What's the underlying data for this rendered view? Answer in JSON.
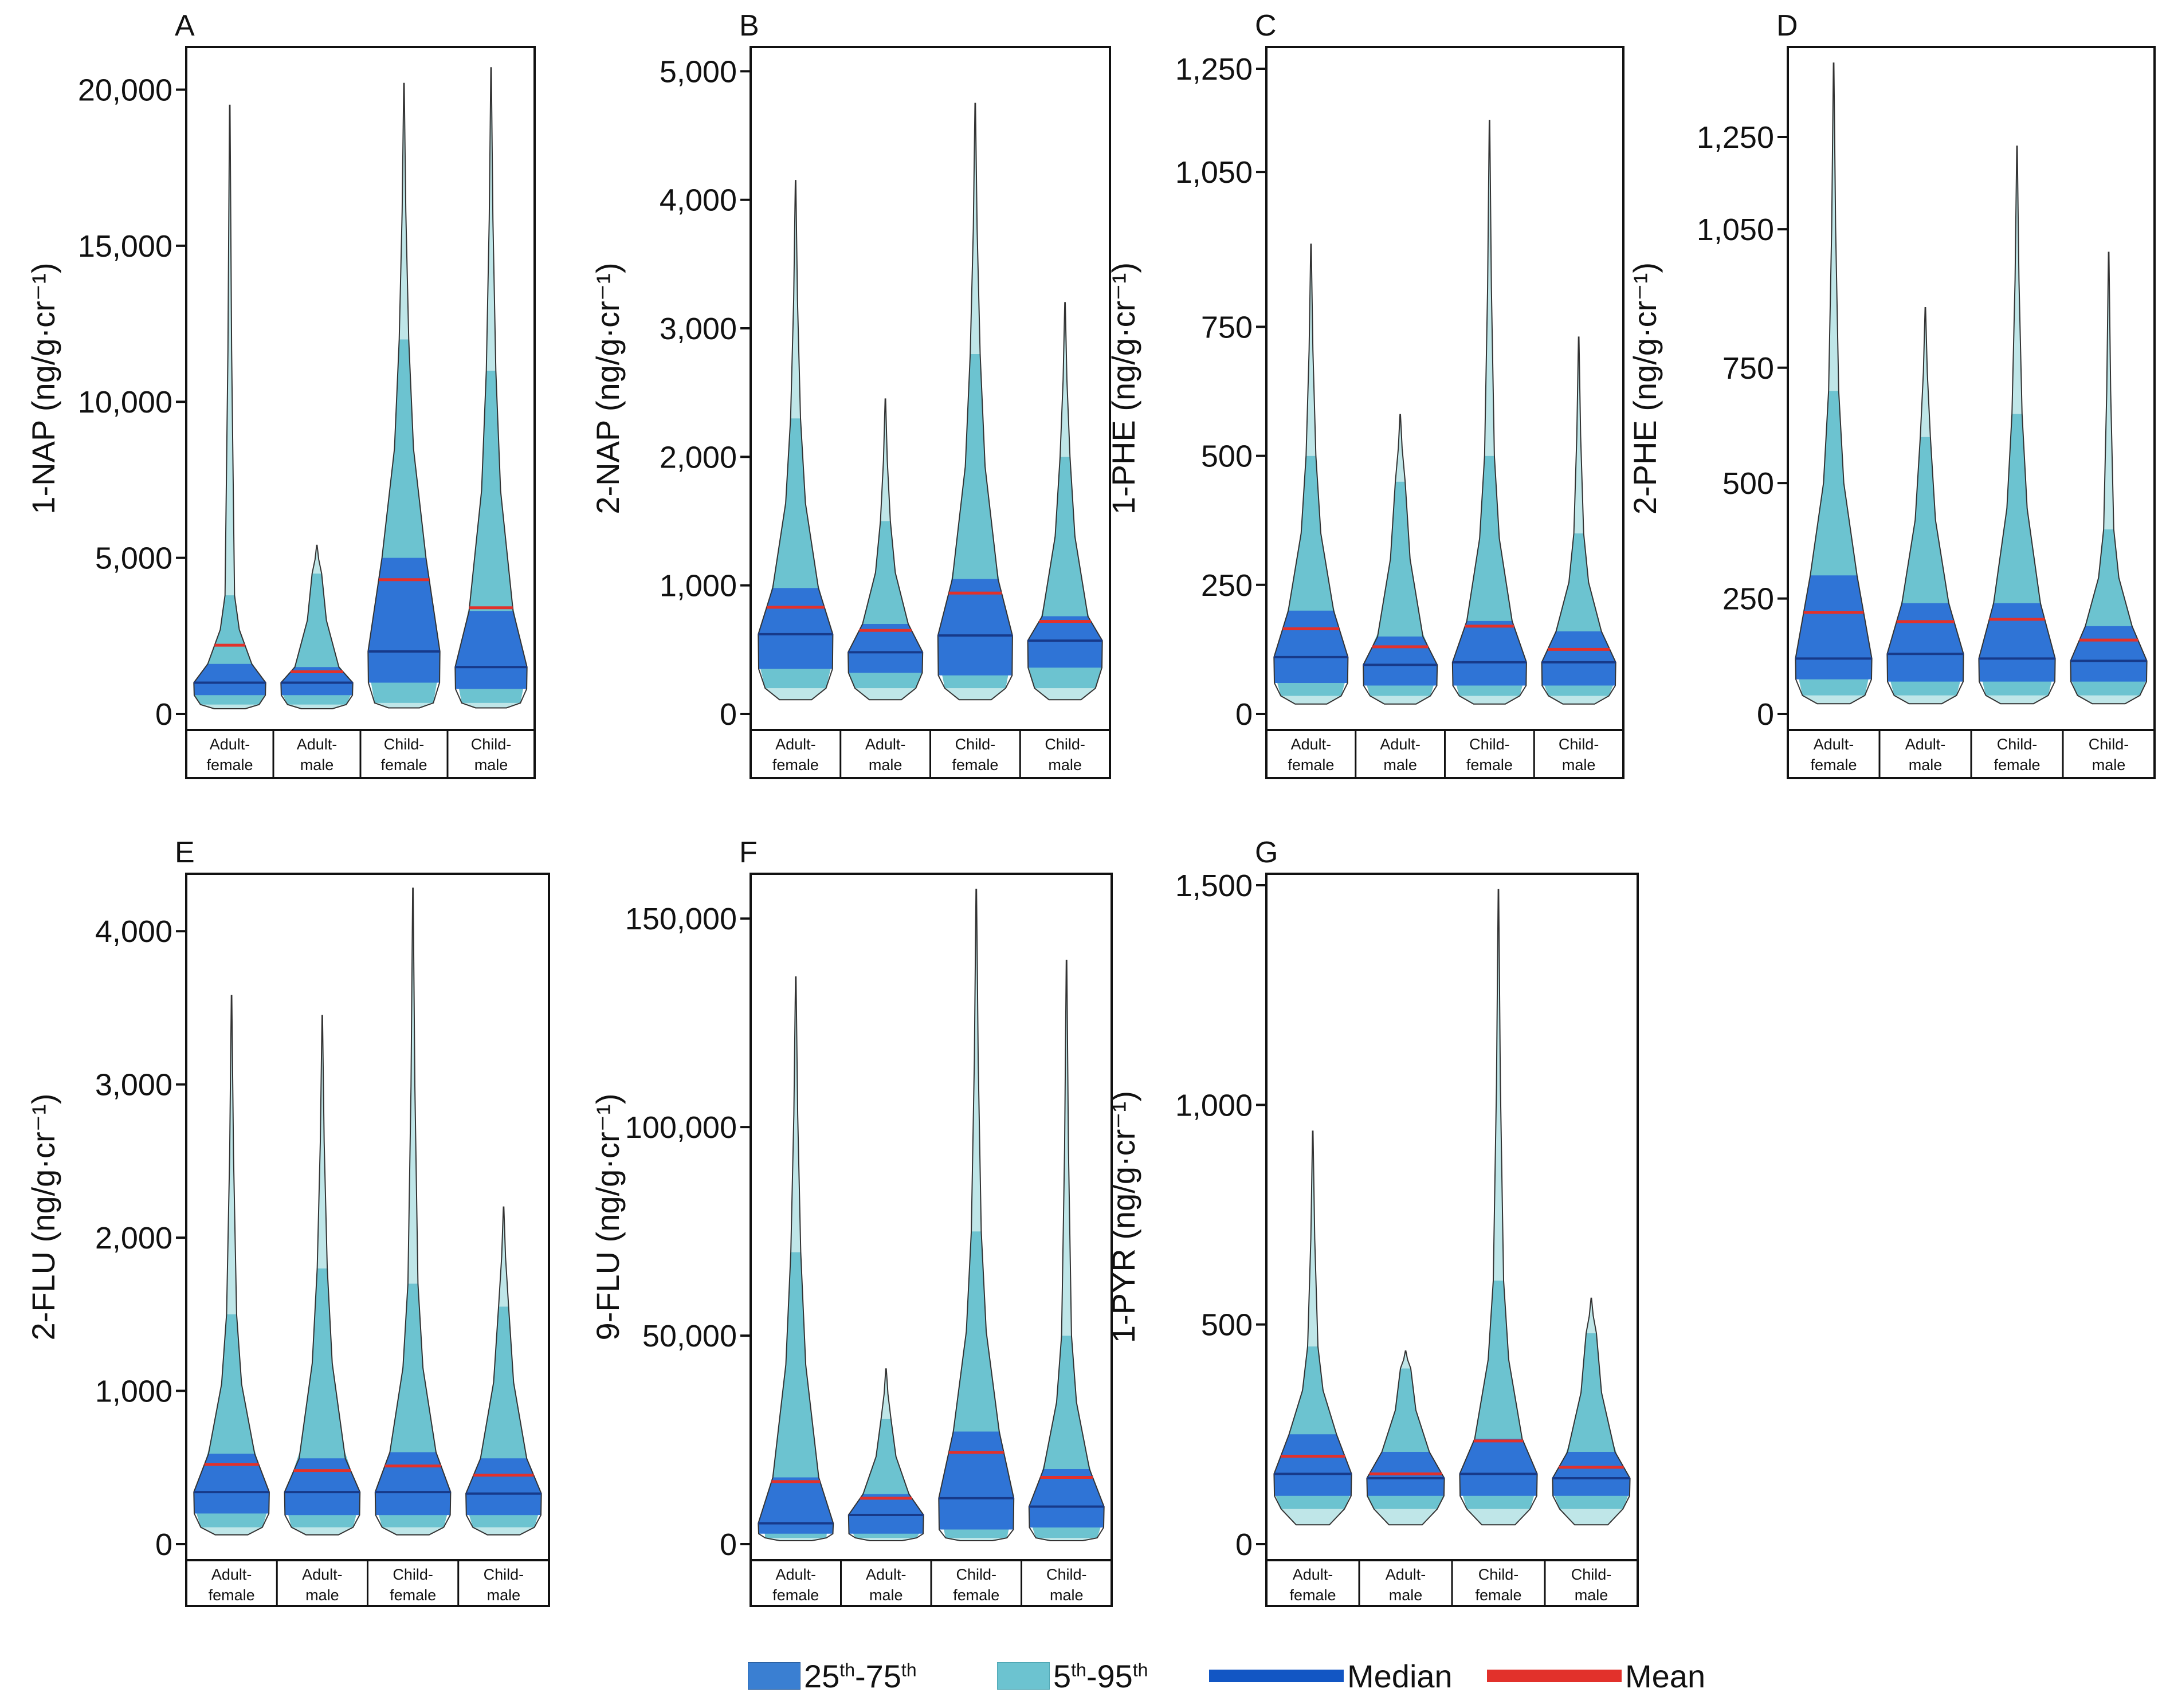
{
  "colors": {
    "iqr": "#2f74d6",
    "range": "#6cc3d0",
    "tail": "#bfe6e8",
    "median": "#173a8a",
    "mean": "#e2312b",
    "frame": "#111111"
  },
  "legend": {
    "iqr_label": "25th-75th",
    "range_label": "5th-95th",
    "median_label": "Median",
    "mean_label": "Mean"
  },
  "chart_data": [
    {
      "panel": "A",
      "type": "violin",
      "ylabel": "1-NAP (ng/g·cr⁻¹)",
      "ylim": [
        0,
        21000
      ],
      "yticks": [
        0,
        5000,
        10000,
        15000,
        20000
      ],
      "ytick_labels": [
        "0",
        "5,000",
        "10,000",
        "15,000",
        "20,000"
      ],
      "categories": [
        [
          "Adult-",
          "female"
        ],
        [
          "Adult-",
          "male"
        ],
        [
          "Child-",
          "female"
        ],
        [
          "Child-",
          "male"
        ]
      ],
      "groups": [
        {
          "p5": 300,
          "p25": 600,
          "median": 1000,
          "p75": 1600,
          "p95": 3800,
          "mean": 2200,
          "max": 19500
        },
        {
          "p5": 300,
          "p25": 600,
          "median": 1000,
          "p75": 1500,
          "p95": 4500,
          "mean": 1350,
          "max": 5400
        },
        {
          "p5": 350,
          "p25": 1000,
          "median": 2000,
          "p75": 5000,
          "p95": 12000,
          "mean": 4300,
          "max": 20200
        },
        {
          "p5": 350,
          "p25": 800,
          "median": 1500,
          "p75": 3300,
          "p95": 11000,
          "mean": 3400,
          "max": 20700
        }
      ]
    },
    {
      "panel": "B",
      "type": "violin",
      "ylabel": "2-NAP (ng/g·cr⁻¹)",
      "ylim": [
        0,
        5100
      ],
      "yticks": [
        0,
        1000,
        2000,
        3000,
        4000,
        5000
      ],
      "ytick_labels": [
        "0",
        "1,000",
        "2,000",
        "3,000",
        "4,000",
        "5,000"
      ],
      "categories": [
        [
          "Adult-",
          "female"
        ],
        [
          "Adult-",
          "male"
        ],
        [
          "Child-",
          "female"
        ],
        [
          "Child-",
          "male"
        ]
      ],
      "groups": [
        {
          "p5": 200,
          "p25": 350,
          "median": 620,
          "p75": 980,
          "p95": 2300,
          "mean": 830,
          "max": 4150
        },
        {
          "p5": 200,
          "p25": 320,
          "median": 480,
          "p75": 700,
          "p95": 1500,
          "mean": 650,
          "max": 2450
        },
        {
          "p5": 200,
          "p25": 300,
          "median": 610,
          "p75": 1050,
          "p95": 2800,
          "mean": 940,
          "max": 4750
        },
        {
          "p5": 200,
          "p25": 360,
          "median": 570,
          "p75": 760,
          "p95": 2000,
          "mean": 720,
          "max": 3200
        }
      ]
    },
    {
      "panel": "C",
      "type": "violin",
      "ylabel": "1-PHE (ng/g·cr⁻¹)",
      "ylim": [
        0,
        1270
      ],
      "yticks": [
        0,
        250,
        500,
        750,
        1050,
        1250
      ],
      "ytick_labels": [
        "0",
        "250",
        "500",
        "750",
        "1,050",
        "1,250"
      ],
      "categories": [
        [
          "Adult-",
          "female"
        ],
        [
          "Adult-",
          "male"
        ],
        [
          "Child-",
          "female"
        ],
        [
          "Child-",
          "male"
        ]
      ],
      "groups": [
        {
          "p5": 35,
          "p25": 60,
          "median": 110,
          "p75": 200,
          "p95": 500,
          "mean": 165,
          "max": 910
        },
        {
          "p5": 35,
          "p25": 55,
          "median": 95,
          "p75": 150,
          "p95": 450,
          "mean": 130,
          "max": 580
        },
        {
          "p5": 35,
          "p25": 55,
          "median": 100,
          "p75": 180,
          "p95": 500,
          "mean": 170,
          "max": 1150
        },
        {
          "p5": 35,
          "p25": 55,
          "median": 100,
          "p75": 160,
          "p95": 350,
          "mean": 125,
          "max": 730
        }
      ]
    },
    {
      "panel": "D",
      "type": "violin",
      "ylabel": "2-PHE (ng/g·cr⁻¹)",
      "ylim": [
        0,
        1420
      ],
      "yticks": [
        0,
        250,
        500,
        750,
        1050,
        1250
      ],
      "ytick_labels": [
        "0",
        "250",
        "500",
        "750",
        "1,050",
        "1,250"
      ],
      "categories": [
        [
          "Adult-",
          "female"
        ],
        [
          "Adult-",
          "male"
        ],
        [
          "Child-",
          "female"
        ],
        [
          "Child-",
          "male"
        ]
      ],
      "groups": [
        {
          "p5": 40,
          "p25": 75,
          "median": 120,
          "p75": 300,
          "p95": 700,
          "mean": 220,
          "max": 1410
        },
        {
          "p5": 40,
          "p25": 70,
          "median": 130,
          "p75": 240,
          "p95": 600,
          "mean": 200,
          "max": 880
        },
        {
          "p5": 40,
          "p25": 70,
          "median": 120,
          "p75": 240,
          "p95": 650,
          "mean": 205,
          "max": 1230
        },
        {
          "p5": 40,
          "p25": 70,
          "median": 115,
          "p75": 190,
          "p95": 400,
          "mean": 160,
          "max": 1000
        }
      ]
    },
    {
      "panel": "E",
      "type": "violin",
      "ylabel": "2-FLU (ng/g·cr⁻¹)",
      "ylim": [
        0,
        4300
      ],
      "yticks": [
        0,
        1000,
        2000,
        3000,
        4000
      ],
      "ytick_labels": [
        "0",
        "1,000",
        "2,000",
        "3,000",
        "4,000"
      ],
      "categories": [
        [
          "Adult-",
          "female"
        ],
        [
          "Adult-",
          "male"
        ],
        [
          "Child-",
          "female"
        ],
        [
          "Child-",
          "male"
        ]
      ],
      "groups": [
        {
          "p5": 110,
          "p25": 200,
          "median": 340,
          "p75": 590,
          "p95": 1500,
          "mean": 520,
          "max": 3580
        },
        {
          "p5": 110,
          "p25": 190,
          "median": 340,
          "p75": 560,
          "p95": 1800,
          "mean": 480,
          "max": 3450
        },
        {
          "p5": 110,
          "p25": 190,
          "median": 340,
          "p75": 600,
          "p95": 1700,
          "mean": 510,
          "max": 4280
        },
        {
          "p5": 110,
          "p25": 190,
          "median": 330,
          "p75": 560,
          "p95": 1550,
          "mean": 450,
          "max": 2200
        }
      ]
    },
    {
      "panel": "F",
      "type": "violin",
      "ylabel": "9-FLU (ng/g·cr⁻¹)",
      "ylim": [
        0,
        158000
      ],
      "yticks": [
        0,
        50000,
        100000,
        150000
      ],
      "ytick_labels": [
        "0",
        "50,000",
        "100,000",
        "150,000"
      ],
      "categories": [
        [
          "Adult-",
          "female"
        ],
        [
          "Adult-",
          "male"
        ],
        [
          "Child-",
          "female"
        ],
        [
          "Child-",
          "male"
        ]
      ],
      "groups": [
        {
          "p5": 1500,
          "p25": 2500,
          "median": 5000,
          "p75": 16000,
          "p95": 70000,
          "mean": 15000,
          "max": 136000
        },
        {
          "p5": 1500,
          "p25": 2500,
          "median": 7000,
          "p75": 12000,
          "p95": 30000,
          "mean": 11000,
          "max": 42000
        },
        {
          "p5": 1500,
          "p25": 3500,
          "median": 11000,
          "p75": 27000,
          "p95": 75000,
          "mean": 22000,
          "max": 157000
        },
        {
          "p5": 1500,
          "p25": 4000,
          "median": 9000,
          "p75": 18000,
          "p95": 50000,
          "mean": 16000,
          "max": 140000
        }
      ]
    },
    {
      "panel": "G",
      "type": "violin",
      "ylabel": "1-PYR (ng/g·cr⁻¹)",
      "ylim": [
        0,
        1500
      ],
      "yticks": [
        0,
        500,
        1000,
        1500
      ],
      "ytick_labels": [
        "0",
        "500",
        "1,000",
        "1,500"
      ],
      "categories": [
        [
          "Adult-",
          "female"
        ],
        [
          "Adult-",
          "male"
        ],
        [
          "Child-",
          "female"
        ],
        [
          "Child-",
          "male"
        ]
      ],
      "groups": [
        {
          "p5": 80,
          "p25": 110,
          "median": 160,
          "p75": 250,
          "p95": 450,
          "mean": 200,
          "max": 940
        },
        {
          "p5": 80,
          "p25": 110,
          "median": 150,
          "p75": 210,
          "p95": 400,
          "mean": 160,
          "max": 440
        },
        {
          "p5": 80,
          "p25": 110,
          "median": 160,
          "p75": 240,
          "p95": 600,
          "mean": 235,
          "max": 1490
        },
        {
          "p5": 80,
          "p25": 110,
          "median": 150,
          "p75": 210,
          "p95": 480,
          "mean": 175,
          "max": 560
        }
      ]
    }
  ]
}
